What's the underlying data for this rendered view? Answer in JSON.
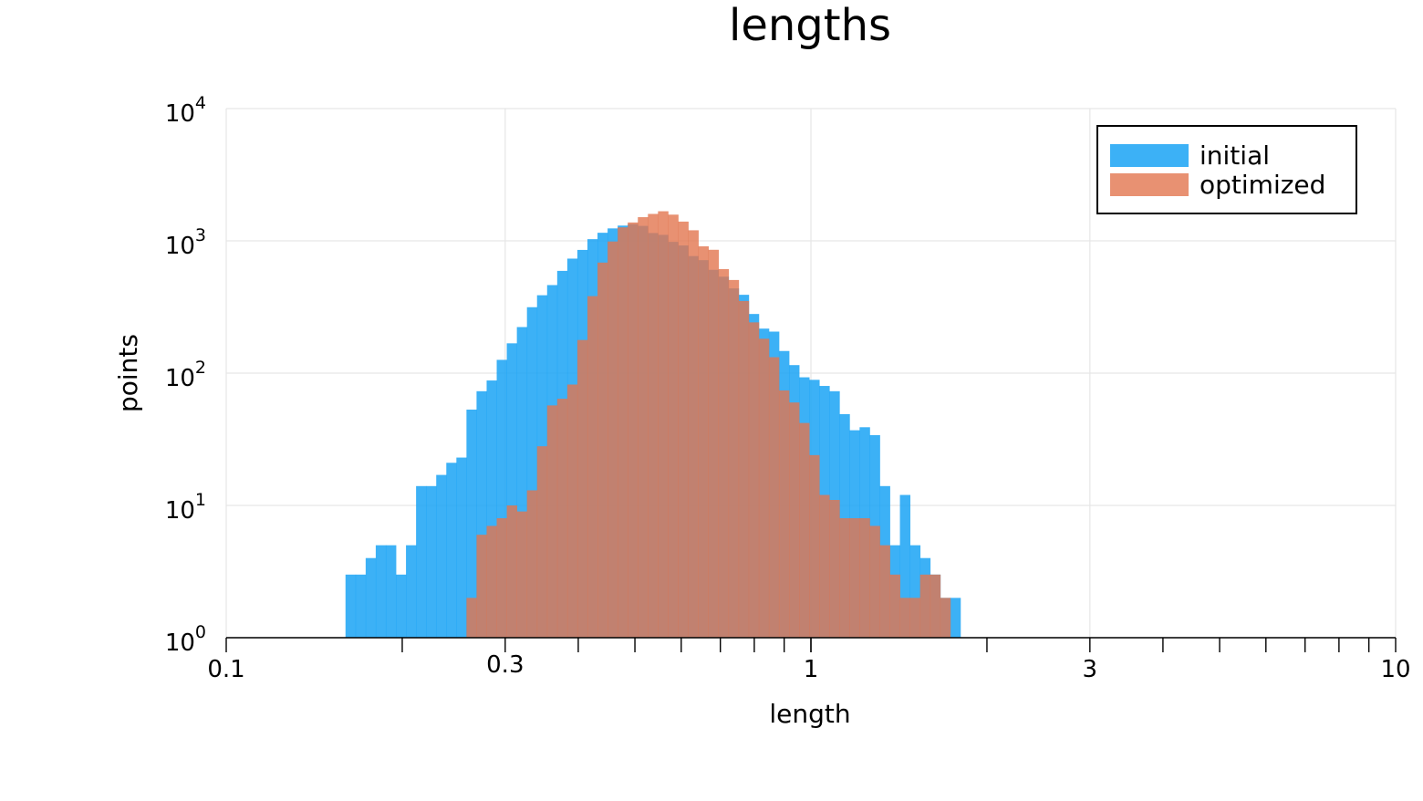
{
  "chart_data": {
    "type": "bar",
    "title": "lengths",
    "xlabel": "length",
    "ylabel": "points",
    "x_scale": "log",
    "y_scale": "log",
    "xlim": [
      0.1,
      10
    ],
    "ylim": [
      1,
      10000
    ],
    "x_tick_labels": [
      {
        "value": 0.1,
        "label": "0.1"
      },
      {
        "value": 0.3,
        "label": "0.3"
      },
      {
        "value": 1,
        "label": "1"
      },
      {
        "value": 3,
        "label": "3"
      },
      {
        "value": 10,
        "label": "10"
      }
    ],
    "y_tick_labels": [
      {
        "value": 1,
        "base": "10",
        "exp": "0"
      },
      {
        "value": 10,
        "base": "10",
        "exp": "1"
      },
      {
        "value": 100,
        "base": "10",
        "exp": "2"
      },
      {
        "value": 1000,
        "base": "10",
        "exp": "3"
      },
      {
        "value": 10000,
        "base": "10",
        "exp": "4"
      }
    ],
    "grid": true,
    "legend_position": "top-right",
    "bin_log10_start": -0.796,
    "bin_log10_width": 0.01724,
    "series": [
      {
        "name": "initial",
        "color": "#1aa3f5",
        "opacity": 0.85,
        "values": [
          3,
          3,
          4,
          5,
          5,
          3,
          5,
          14,
          14,
          17,
          21,
          23,
          53,
          73,
          88,
          126,
          168,
          223,
          315,
          388,
          463,
          593,
          734,
          854,
          1030,
          1151,
          1242,
          1304,
          1338,
          1297,
          1146,
          1110,
          982,
          923,
          767,
          715,
          604,
          536,
          437,
          391,
          280,
          217,
          206,
          147,
          115,
          93,
          89,
          80,
          73,
          49,
          37,
          39,
          34,
          14,
          5,
          12,
          5,
          4,
          3,
          2,
          2,
          1,
          1,
          1,
          1,
          1,
          1,
          1,
          1,
          1
        ]
      },
      {
        "name": "optimized",
        "color": "#e2754f",
        "opacity": 0.8,
        "values": [
          1,
          1,
          2,
          6,
          7,
          8,
          10,
          9,
          13,
          28,
          57,
          64,
          82,
          178,
          382,
          685,
          989,
          1265,
          1377,
          1510,
          1598,
          1674,
          1578,
          1398,
          1202,
          909,
          856,
          612,
          506,
          351,
          242,
          182,
          132,
          74,
          60,
          42,
          24,
          12,
          11,
          8,
          8,
          8,
          7,
          5,
          3,
          2,
          2,
          3,
          3,
          2,
          1,
          1,
          1,
          1,
          1,
          1
        ]
      }
    ]
  }
}
